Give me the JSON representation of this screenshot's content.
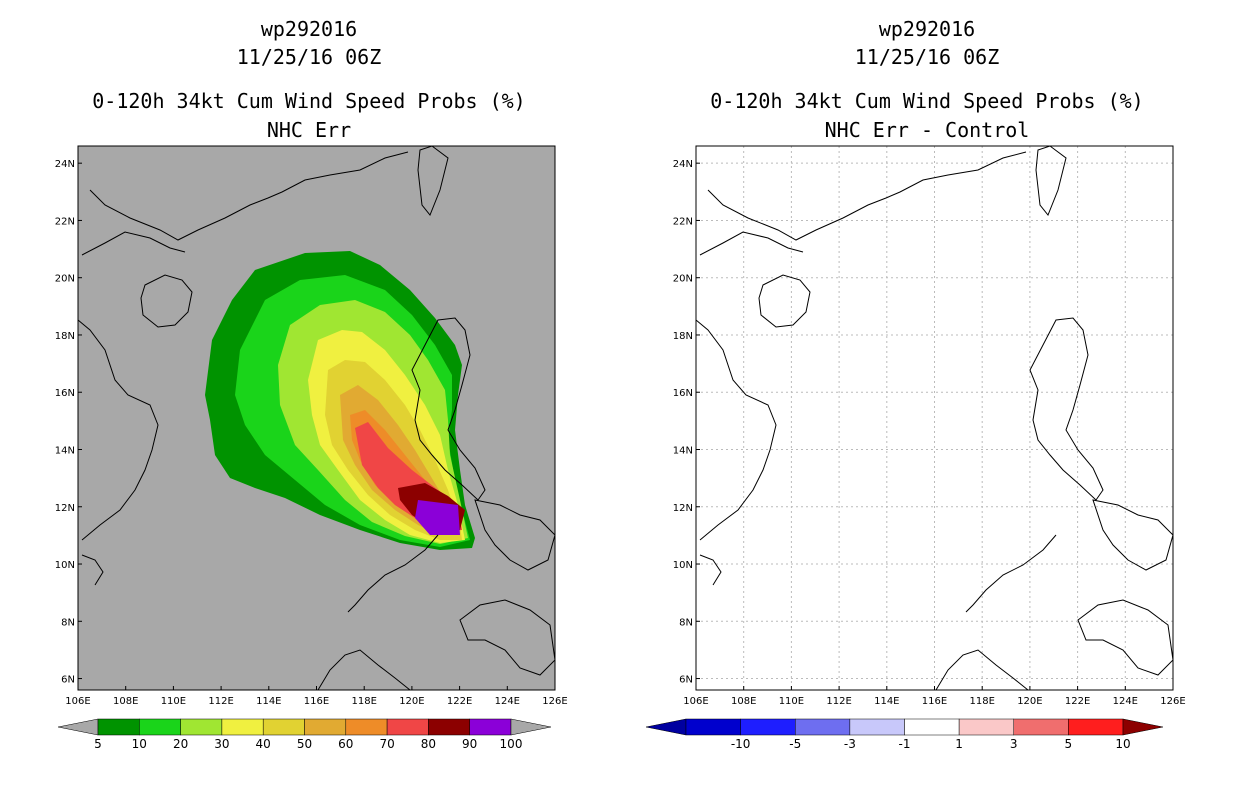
{
  "left": {
    "storm_id": "wp292016",
    "datetime": "11/25/16 06Z",
    "product": "0-120h 34kt Cum Wind Speed Probs (%)",
    "subtitle": "NHC Err",
    "colorbar": {
      "labels": [
        "5",
        "10",
        "20",
        "30",
        "40",
        "50",
        "60",
        "70",
        "80",
        "90",
        "100"
      ],
      "colors": [
        "#009300",
        "#1ad41a",
        "#a0e632",
        "#f0f040",
        "#e1d232",
        "#e1aa32",
        "#ee8c28",
        "#f04646",
        "#8c0000",
        "#8b00d8"
      ],
      "under_color": "#a8a8a8",
      "over_color": "#a8a8a8"
    }
  },
  "right": {
    "storm_id": "wp292016",
    "datetime": "11/25/16 06Z",
    "product": "0-120h 34kt Cum Wind Speed Probs (%)",
    "subtitle": "NHC Err - Control",
    "colorbar": {
      "labels": [
        "-10",
        "-5",
        "-3",
        "-1",
        "1",
        "3",
        "5",
        "10"
      ],
      "colors": [
        "#0000cd",
        "#1e1eff",
        "#6e6ef0",
        "#c8c8fa",
        "#ffffff",
        "#fac8c8",
        "#f06e6e",
        "#ff1e1e"
      ],
      "under_color": "#0000a0",
      "over_color": "#8c0000"
    }
  },
  "axes": {
    "lon_labels": [
      "106E",
      "108E",
      "110E",
      "112E",
      "114E",
      "116E",
      "118E",
      "120E",
      "122E",
      "124E",
      "126E"
    ],
    "lat_labels": [
      "6N",
      "8N",
      "10N",
      "12N",
      "14N",
      "16N",
      "18N",
      "20N",
      "22N",
      "24N"
    ]
  },
  "colors": {
    "map_background": "#a8a8a8",
    "coast": "#000000",
    "grid": "#bbbbbb"
  }
}
